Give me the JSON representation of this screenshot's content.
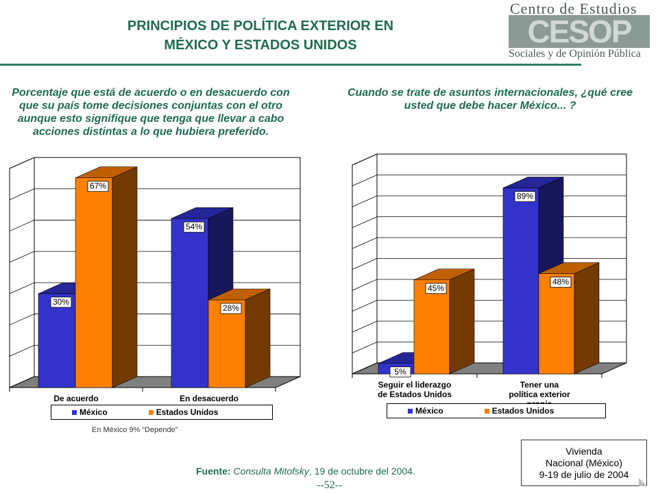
{
  "title_line1": "PRINCIPIOS DE POLÍTICA EXTERIOR EN",
  "title_line2": "MÉXICO Y ESTADOS UNIDOS",
  "logo": {
    "top": "Centro de Estudios",
    "big": "CESOP",
    "bottom": "Sociales y de Opinión Pública"
  },
  "colors": {
    "mexico": "#3333cc",
    "eeuu": "#ff8000",
    "title": "#1f6b4e"
  },
  "chart_data": [
    {
      "type": "bar",
      "title": "Porcentaje que está de acuerdo o en desacuerdo con que su país tome decisiones conjuntas con el otro aunque esto signifique que tenga que llevar a cabo acciones distintas a lo que hubiera preferido.",
      "categories": [
        "De acuerdo",
        "En desacuerdo"
      ],
      "series": [
        {
          "name": "México",
          "values": [
            30,
            54
          ],
          "labels": [
            "30%",
            "54%"
          ]
        },
        {
          "name": "Estados Unidos",
          "values": [
            67,
            28
          ],
          "labels": [
            "67%",
            "28%"
          ]
        }
      ],
      "ylim": [
        0,
        70
      ],
      "grid": true,
      "legend": "bottom"
    },
    {
      "type": "bar",
      "title": "Cuando se trate de asuntos internacionales, ¿qué cree usted que debe hacer México... ?",
      "categories": [
        "Seguir el liderazgo de Estados Unidos",
        "Tener una política exterior propia"
      ],
      "series": [
        {
          "name": "México",
          "values": [
            5,
            89
          ],
          "labels": [
            "5%",
            "89%"
          ]
        },
        {
          "name": "Estados Unidos",
          "values": [
            45,
            48
          ],
          "labels": [
            "45%",
            "48%"
          ]
        }
      ],
      "ylim": [
        0,
        100
      ],
      "grid": true,
      "legend": "bottom"
    }
  ],
  "note": "En México 9% “Depende”",
  "source": {
    "label": "Fuente:",
    "name": "Consulta Mitofsky",
    "rest": ", 19 de octubre del 2004."
  },
  "page_number": "--52--",
  "survey": {
    "line1": "Vivienda",
    "line2": "Nacional (México)",
    "line3": "9-19 de julio de 2004"
  }
}
